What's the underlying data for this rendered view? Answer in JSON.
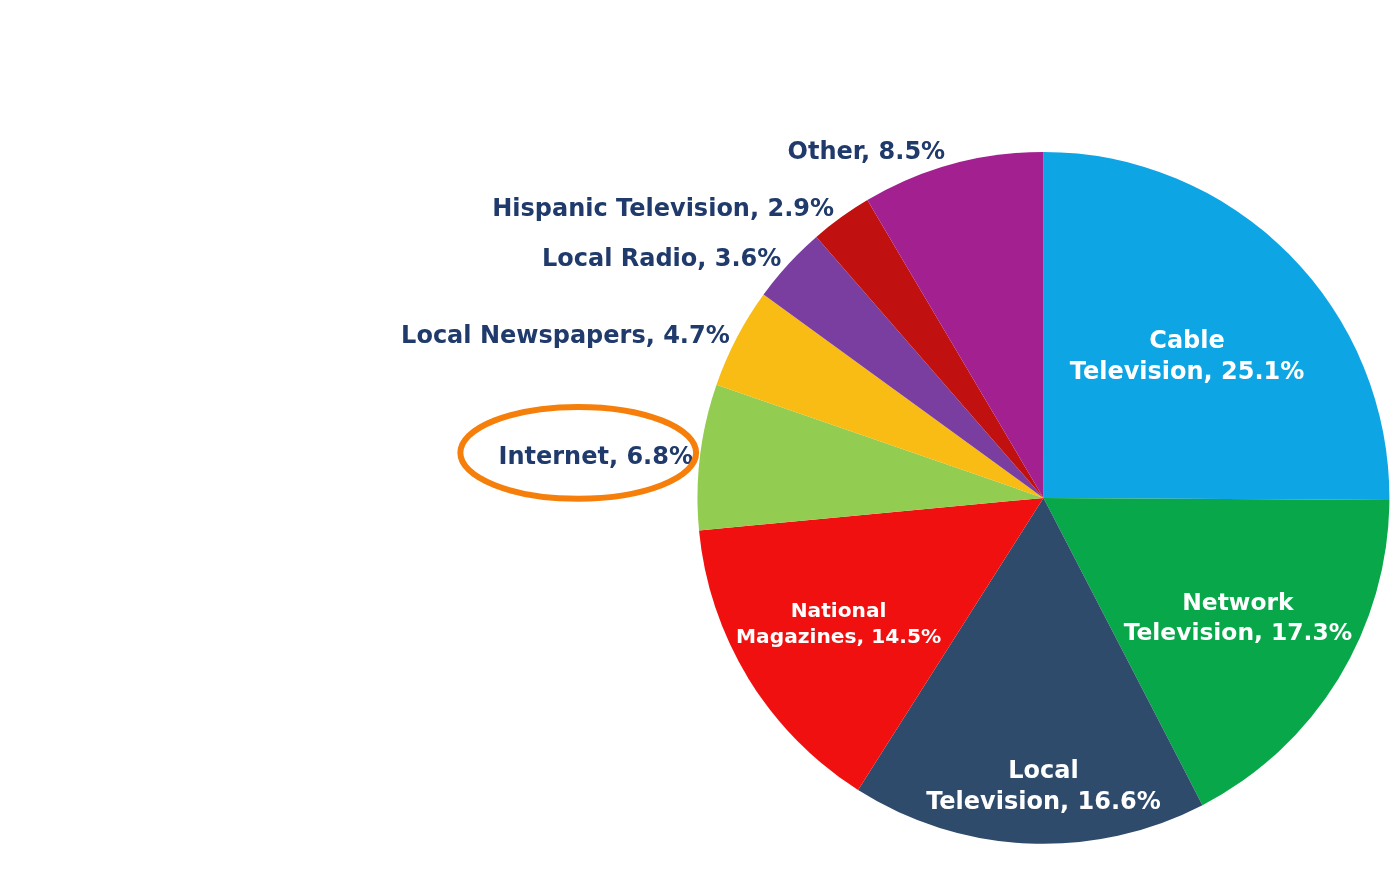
{
  "chart_data": {
    "type": "pie",
    "categories": [
      "Cable Television",
      "Network Television",
      "Local Television",
      "National Magazines",
      "Internet",
      "Local Newspapers",
      "Local Radio",
      "Hispanic Television",
      "Other"
    ],
    "values": [
      25.1,
      17.3,
      16.6,
      14.5,
      6.8,
      4.7,
      3.6,
      2.9,
      8.5
    ],
    "value_labels": [
      "25.1%",
      "17.3%",
      "16.6%",
      "14.5%",
      "6.8%",
      "4.7%",
      "3.6%",
      "2.9%",
      "8.5%"
    ],
    "colors": [
      "#0ea5e5",
      "#08a84a",
      "#2f4b6b",
      "#f01010",
      "#92cc50",
      "#f8bc14",
      "#7a3ea0",
      "#c01010",
      "#a32090"
    ],
    "legend": false
  }
}
